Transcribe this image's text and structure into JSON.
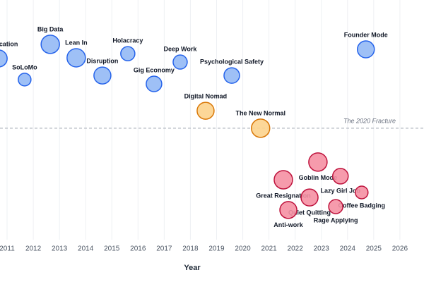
{
  "chart_data": {
    "type": "bubble",
    "x_label": "Year",
    "xlim": [
      2010.73,
      2026.92
    ],
    "ylim": [
      0,
      100
    ],
    "xticks": [
      2011,
      2012,
      2013,
      2014,
      2015,
      2016,
      2017,
      2018,
      2019,
      2020,
      2021,
      2022,
      2023,
      2024,
      2025,
      2026
    ],
    "grid": true,
    "hline": {
      "y": 46.5,
      "label": "The 2020 Fracture"
    },
    "series": [
      {
        "color": "#93b9f5",
        "edge_color": "#2563eb",
        "label_position": "above",
        "labels": [
          "Gamification",
          "SoLoMo",
          "Big Data",
          "Lean In",
          "Disruption",
          "Holacracy",
          "Gig Economy",
          "Deep Work",
          "Psychological Safety",
          "Founder Mode"
        ],
        "x": [
          2010.68,
          2011.67,
          2012.65,
          2013.64,
          2014.64,
          2015.61,
          2016.61,
          2017.61,
          2019.58,
          2024.7
        ],
        "values": [
          75.6,
          66.8,
          81.5,
          75.9,
          68.5,
          77.6,
          65.0,
          74.1,
          68.5,
          79.4
        ],
        "sizes": [
          12,
          9,
          13,
          13,
          12,
          10,
          11,
          10,
          11,
          12
        ]
      },
      {
        "color": "#fcd38d",
        "edge_color": "#d97706",
        "label_position": "above",
        "labels": [
          "Digital Nomad",
          "The New Normal"
        ],
        "x": [
          2018.58,
          2020.68
        ],
        "values": [
          53.8,
          46.5
        ],
        "sizes": [
          12,
          13
        ]
      },
      {
        "color": "#f590a3",
        "edge_color": "#be123c",
        "label_position": "below",
        "labels": [
          "Great Resignation",
          "Goblin Mode",
          "Lazy Girl Job",
          "Coffee Badging",
          "Quiet Quitting",
          "Rage Applying",
          "Anti-work"
        ],
        "x": [
          2021.55,
          2022.87,
          2023.73,
          2024.54,
          2022.55,
          2023.55,
          2021.74
        ],
        "values": [
          25.0,
          32.4,
          26.5,
          19.7,
          17.6,
          13.8,
          12.4
        ],
        "sizes": [
          13,
          13,
          11,
          9,
          12,
          10,
          12
        ]
      }
    ]
  }
}
